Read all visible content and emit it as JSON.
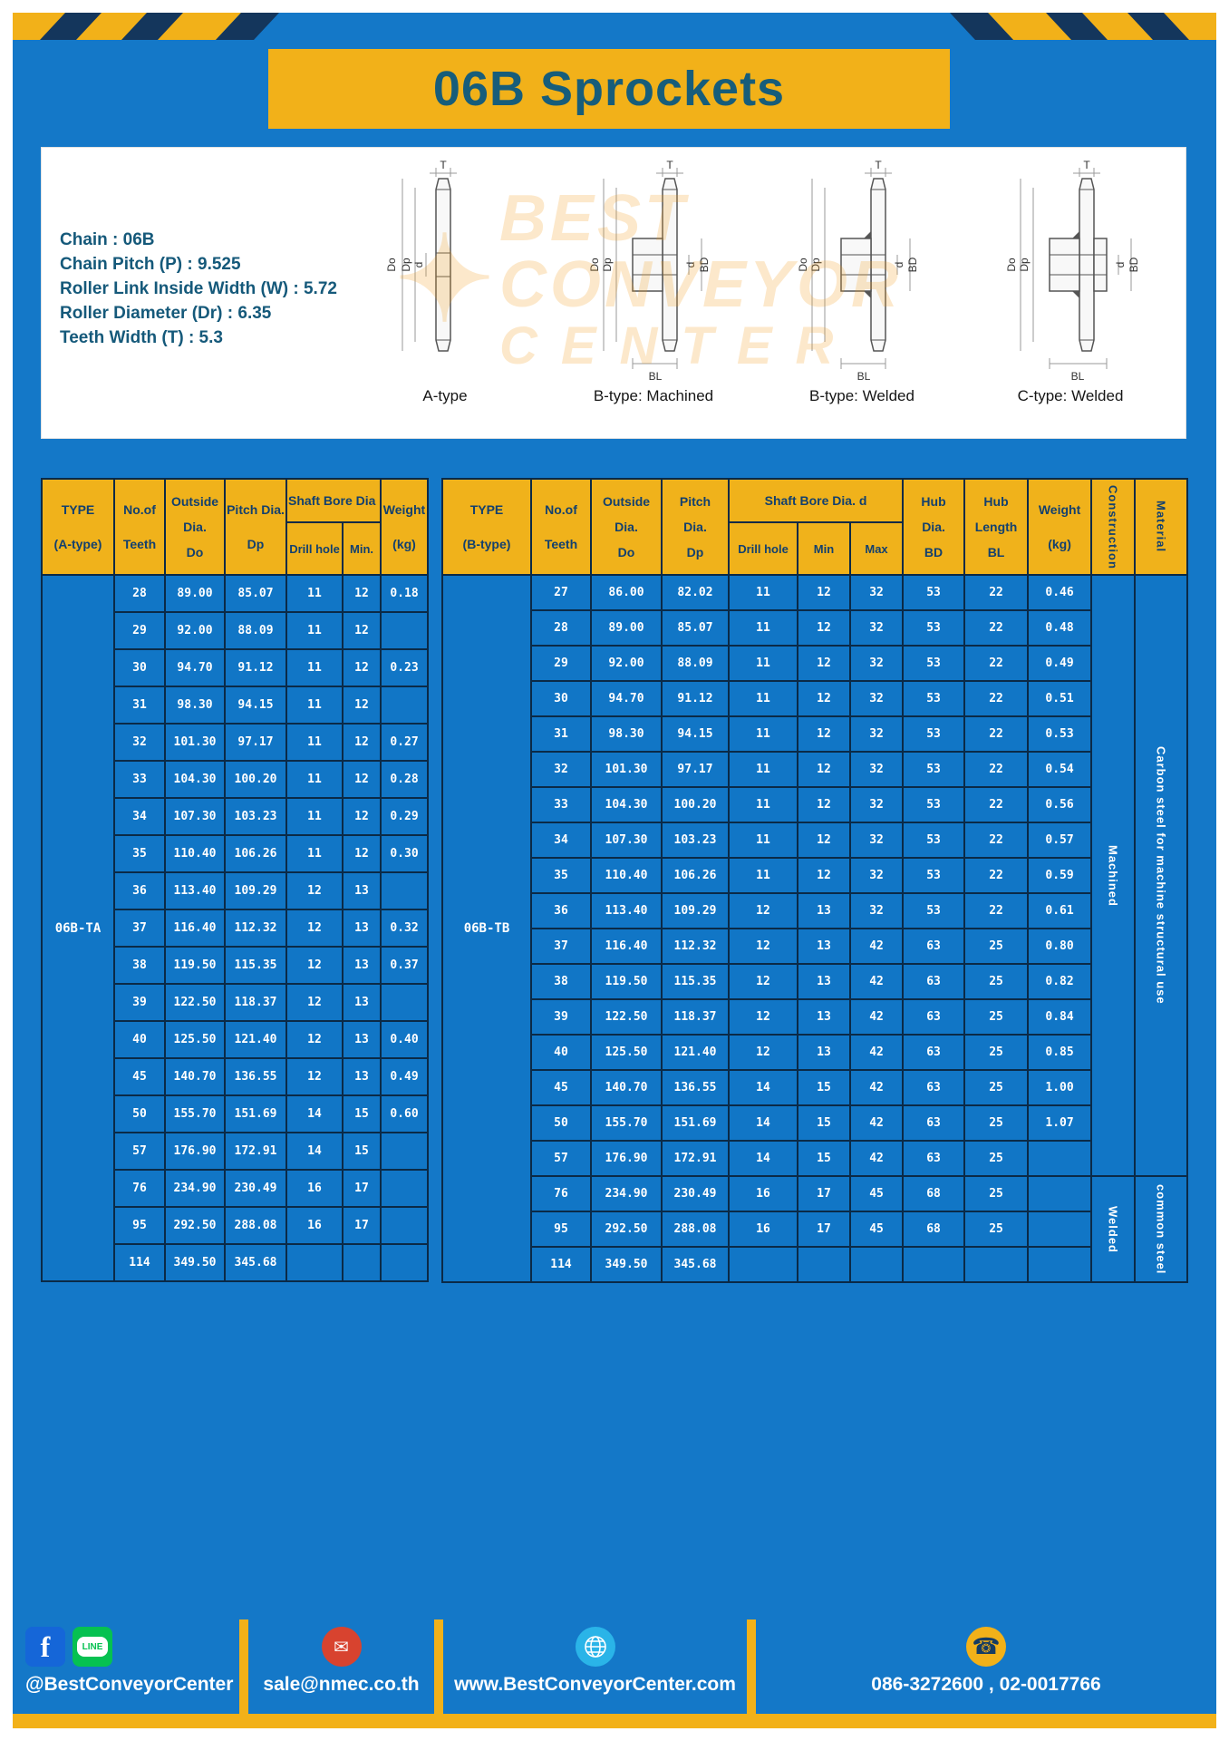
{
  "page": {
    "title": "06B Sprockets"
  },
  "specs": {
    "lines": [
      "Chain  :  06B",
      "Chain Pitch (P)  :  9.525",
      "Roller Link Inside Width (W)  :  5.72",
      "Roller Diameter (Dr)  :  6.35",
      "Teeth Width (T)  :  5.3"
    ]
  },
  "diagrams": {
    "captions": [
      "A-type",
      "B-type: Machined",
      "B-type: Welded",
      "C-type: Welded"
    ],
    "dims": {
      "t": "T",
      "do": "Do",
      "dp": "Dp",
      "d": "d",
      "bd": "BD",
      "bl": "BL"
    }
  },
  "watermark": {
    "star": "✦",
    "line1": "BEST",
    "line2": "CONVEYOR",
    "line3": "CENTER"
  },
  "table_a": {
    "type_label": "06B-TA",
    "headers": {
      "type_line1": "TYPE",
      "type_line2": "(A-type)",
      "teeth_line1": "No.of",
      "teeth_line2": "Teeth",
      "outside_line1": "Outside",
      "outside_line2": "Dia.",
      "outside_line3": "Do",
      "pitch_line1": "Pitch Dia.",
      "pitch_line2": "Dp",
      "bore_group": "Shaft Bore Dia d",
      "drill": "Drill hole",
      "min": "Min.",
      "weight_line1": "Weight",
      "weight_line2": "(kg)"
    },
    "rows": [
      {
        "t": "28",
        "do": "89.00",
        "dp": "85.07",
        "dr": "11",
        "mn": "12",
        "w": "0.18"
      },
      {
        "t": "29",
        "do": "92.00",
        "dp": "88.09",
        "dr": "11",
        "mn": "12",
        "w": ""
      },
      {
        "t": "30",
        "do": "94.70",
        "dp": "91.12",
        "dr": "11",
        "mn": "12",
        "w": "0.23"
      },
      {
        "t": "31",
        "do": "98.30",
        "dp": "94.15",
        "dr": "11",
        "mn": "12",
        "w": ""
      },
      {
        "t": "32",
        "do": "101.30",
        "dp": "97.17",
        "dr": "11",
        "mn": "12",
        "w": "0.27"
      },
      {
        "t": "33",
        "do": "104.30",
        "dp": "100.20",
        "dr": "11",
        "mn": "12",
        "w": "0.28"
      },
      {
        "t": "34",
        "do": "107.30",
        "dp": "103.23",
        "dr": "11",
        "mn": "12",
        "w": "0.29"
      },
      {
        "t": "35",
        "do": "110.40",
        "dp": "106.26",
        "dr": "11",
        "mn": "12",
        "w": "0.30"
      },
      {
        "t": "36",
        "do": "113.40",
        "dp": "109.29",
        "dr": "12",
        "mn": "13",
        "w": ""
      },
      {
        "t": "37",
        "do": "116.40",
        "dp": "112.32",
        "dr": "12",
        "mn": "13",
        "w": "0.32"
      },
      {
        "t": "38",
        "do": "119.50",
        "dp": "115.35",
        "dr": "12",
        "mn": "13",
        "w": "0.37"
      },
      {
        "t": "39",
        "do": "122.50",
        "dp": "118.37",
        "dr": "12",
        "mn": "13",
        "w": ""
      },
      {
        "t": "40",
        "do": "125.50",
        "dp": "121.40",
        "dr": "12",
        "mn": "13",
        "w": "0.40"
      },
      {
        "t": "45",
        "do": "140.70",
        "dp": "136.55",
        "dr": "12",
        "mn": "13",
        "w": "0.49"
      },
      {
        "t": "50",
        "do": "155.70",
        "dp": "151.69",
        "dr": "14",
        "mn": "15",
        "w": "0.60"
      },
      {
        "t": "57",
        "do": "176.90",
        "dp": "172.91",
        "dr": "14",
        "mn": "15",
        "w": ""
      },
      {
        "t": "76",
        "do": "234.90",
        "dp": "230.49",
        "dr": "16",
        "mn": "17",
        "w": ""
      },
      {
        "t": "95",
        "do": "292.50",
        "dp": "288.08",
        "dr": "16",
        "mn": "17",
        "w": ""
      },
      {
        "t": "114",
        "do": "349.50",
        "dp": "345.68",
        "dr": "",
        "mn": "",
        "w": ""
      }
    ]
  },
  "table_b": {
    "type_label": "06B-TB",
    "headers": {
      "type_line1": "TYPE",
      "type_line2": "(B-type)",
      "teeth_line1": "No.of",
      "teeth_line2": "Teeth",
      "outside_line1": "Outside",
      "outside_line2": "Dia.",
      "outside_line3": "Do",
      "pitch_line1": "Pitch",
      "pitch_line2": "Dia.",
      "pitch_line3": "Dp",
      "bore_group": "Shaft Bore Dia. d",
      "drill": "Drill hole",
      "min": "Min",
      "max": "Max",
      "hubdia_line1": "Hub",
      "hubdia_line2": "Dia.",
      "hubdia_line3": "BD",
      "hublen_line1": "Hub",
      "hublen_line2": "Length",
      "hublen_line3": "BL",
      "weight_line1": "Weight",
      "weight_line2": "(kg)",
      "construction": "Construction",
      "material": "Material"
    },
    "rows": [
      {
        "t": "27",
        "do": "86.00",
        "dp": "82.02",
        "dr": "11",
        "mn": "12",
        "mx": "32",
        "bd": "53",
        "bl": "22",
        "w": "0.46"
      },
      {
        "t": "28",
        "do": "89.00",
        "dp": "85.07",
        "dr": "11",
        "mn": "12",
        "mx": "32",
        "bd": "53",
        "bl": "22",
        "w": "0.48"
      },
      {
        "t": "29",
        "do": "92.00",
        "dp": "88.09",
        "dr": "11",
        "mn": "12",
        "mx": "32",
        "bd": "53",
        "bl": "22",
        "w": "0.49"
      },
      {
        "t": "30",
        "do": "94.70",
        "dp": "91.12",
        "dr": "11",
        "mn": "12",
        "mx": "32",
        "bd": "53",
        "bl": "22",
        "w": "0.51"
      },
      {
        "t": "31",
        "do": "98.30",
        "dp": "94.15",
        "dr": "11",
        "mn": "12",
        "mx": "32",
        "bd": "53",
        "bl": "22",
        "w": "0.53"
      },
      {
        "t": "32",
        "do": "101.30",
        "dp": "97.17",
        "dr": "11",
        "mn": "12",
        "mx": "32",
        "bd": "53",
        "bl": "22",
        "w": "0.54"
      },
      {
        "t": "33",
        "do": "104.30",
        "dp": "100.20",
        "dr": "11",
        "mn": "12",
        "mx": "32",
        "bd": "53",
        "bl": "22",
        "w": "0.56"
      },
      {
        "t": "34",
        "do": "107.30",
        "dp": "103.23",
        "dr": "11",
        "mn": "12",
        "mx": "32",
        "bd": "53",
        "bl": "22",
        "w": "0.57"
      },
      {
        "t": "35",
        "do": "110.40",
        "dp": "106.26",
        "dr": "11",
        "mn": "12",
        "mx": "32",
        "bd": "53",
        "bl": "22",
        "w": "0.59"
      },
      {
        "t": "36",
        "do": "113.40",
        "dp": "109.29",
        "dr": "12",
        "mn": "13",
        "mx": "32",
        "bd": "53",
        "bl": "22",
        "w": "0.61"
      },
      {
        "t": "37",
        "do": "116.40",
        "dp": "112.32",
        "dr": "12",
        "mn": "13",
        "mx": "42",
        "bd": "63",
        "bl": "25",
        "w": "0.80"
      },
      {
        "t": "38",
        "do": "119.50",
        "dp": "115.35",
        "dr": "12",
        "mn": "13",
        "mx": "42",
        "bd": "63",
        "bl": "25",
        "w": "0.82"
      },
      {
        "t": "39",
        "do": "122.50",
        "dp": "118.37",
        "dr": "12",
        "mn": "13",
        "mx": "42",
        "bd": "63",
        "bl": "25",
        "w": "0.84"
      },
      {
        "t": "40",
        "do": "125.50",
        "dp": "121.40",
        "dr": "12",
        "mn": "13",
        "mx": "42",
        "bd": "63",
        "bl": "25",
        "w": "0.85"
      },
      {
        "t": "45",
        "do": "140.70",
        "dp": "136.55",
        "dr": "14",
        "mn": "15",
        "mx": "42",
        "bd": "63",
        "bl": "25",
        "w": "1.00"
      },
      {
        "t": "50",
        "do": "155.70",
        "dp": "151.69",
        "dr": "14",
        "mn": "15",
        "mx": "42",
        "bd": "63",
        "bl": "25",
        "w": "1.07"
      },
      {
        "t": "57",
        "do": "176.90",
        "dp": "172.91",
        "dr": "14",
        "mn": "15",
        "mx": "42",
        "bd": "63",
        "bl": "25",
        "w": ""
      },
      {
        "t": "76",
        "do": "234.90",
        "dp": "230.49",
        "dr": "16",
        "mn": "17",
        "mx": "45",
        "bd": "68",
        "bl": "25",
        "w": ""
      },
      {
        "t": "95",
        "do": "292.50",
        "dp": "288.08",
        "dr": "16",
        "mn": "17",
        "mx": "45",
        "bd": "68",
        "bl": "25",
        "w": ""
      },
      {
        "t": "114",
        "do": "349.50",
        "dp": "345.68",
        "dr": "",
        "mn": "",
        "mx": "",
        "bd": "",
        "bl": "",
        "w": ""
      }
    ],
    "construction_spans": [
      {
        "label": "Machined",
        "span": 17
      },
      {
        "label": "Welded",
        "span": 3
      }
    ],
    "material_spans": [
      {
        "label": "Carbon steel for machine structural use",
        "span": 17
      },
      {
        "label": "common steel",
        "span": 3
      }
    ]
  },
  "footer": {
    "sections": [
      {
        "label": "@BestConveyorCenter"
      },
      {
        "label": "sale@nmec.co.th"
      },
      {
        "label": "www.BestConveyorCenter.com"
      },
      {
        "label": "086-3272600 , 02-0017766"
      }
    ],
    "icons": {
      "facebook_glyph": "f",
      "line_text": "LINE",
      "email_glyph": "✉",
      "phone_glyph": "☎"
    }
  }
}
